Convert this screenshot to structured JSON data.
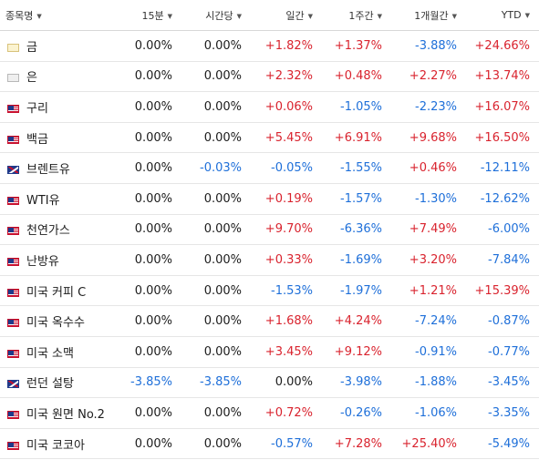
{
  "headers": [
    {
      "label": "종목명"
    },
    {
      "label": "15분"
    },
    {
      "label": "시간당"
    },
    {
      "label": "일간"
    },
    {
      "label": "1주간"
    },
    {
      "label": "1개월간"
    },
    {
      "label": "YTD"
    }
  ],
  "rows": [
    {
      "name": "금",
      "flag": "gold-icon",
      "values": [
        "0.00%",
        "0.00%",
        "+1.82%",
        "+1.37%",
        "-3.88%",
        "+24.66%"
      ]
    },
    {
      "name": "은",
      "flag": "silver-icon",
      "values": [
        "0.00%",
        "0.00%",
        "+2.32%",
        "+0.48%",
        "+2.27%",
        "+13.74%"
      ]
    },
    {
      "name": "구리",
      "flag": "us-flag-icon",
      "values": [
        "0.00%",
        "0.00%",
        "+0.06%",
        "-1.05%",
        "-2.23%",
        "+16.07%"
      ]
    },
    {
      "name": "백금",
      "flag": "us-flag-icon",
      "values": [
        "0.00%",
        "0.00%",
        "+5.45%",
        "+6.91%",
        "+9.68%",
        "+16.50%"
      ]
    },
    {
      "name": "브렌트유",
      "flag": "uk-flag-icon",
      "values": [
        "0.00%",
        "-0.03%",
        "-0.05%",
        "-1.55%",
        "+0.46%",
        "-12.11%"
      ]
    },
    {
      "name": "WTI유",
      "flag": "us-flag-icon",
      "values": [
        "0.00%",
        "0.00%",
        "+0.19%",
        "-1.57%",
        "-1.30%",
        "-12.62%"
      ]
    },
    {
      "name": "천연가스",
      "flag": "us-flag-icon",
      "values": [
        "0.00%",
        "0.00%",
        "+9.70%",
        "-6.36%",
        "+7.49%",
        "-6.00%"
      ]
    },
    {
      "name": "난방유",
      "flag": "us-flag-icon",
      "values": [
        "0.00%",
        "0.00%",
        "+0.33%",
        "-1.69%",
        "+3.20%",
        "-7.84%"
      ]
    },
    {
      "name": "미국 커피 C",
      "flag": "us-flag-icon",
      "values": [
        "0.00%",
        "0.00%",
        "-1.53%",
        "-1.97%",
        "+1.21%",
        "+15.39%"
      ]
    },
    {
      "name": "미국 옥수수",
      "flag": "us-flag-icon",
      "values": [
        "0.00%",
        "0.00%",
        "+1.68%",
        "+4.24%",
        "-7.24%",
        "-0.87%"
      ]
    },
    {
      "name": "미국 소맥",
      "flag": "us-flag-icon",
      "values": [
        "0.00%",
        "0.00%",
        "+3.45%",
        "+9.12%",
        "-0.91%",
        "-0.77%"
      ]
    },
    {
      "name": "런던 설탕",
      "flag": "uk-flag-icon",
      "values": [
        "-3.85%",
        "-3.85%",
        "0.00%",
        "-3.98%",
        "-1.88%",
        "-3.45%"
      ]
    },
    {
      "name": "미국 원면 No.2",
      "flag": "us-flag-icon",
      "values": [
        "0.00%",
        "0.00%",
        "+0.72%",
        "-0.26%",
        "-1.06%",
        "-3.35%"
      ]
    },
    {
      "name": "미국 코코아",
      "flag": "us-flag-icon",
      "values": [
        "0.00%",
        "0.00%",
        "-0.57%",
        "+7.28%",
        "+25.40%",
        "-5.49%"
      ]
    }
  ],
  "colors": {
    "positive": "#d9232e",
    "negative": "#1e6fd9",
    "neutral": "#1c1c1c"
  }
}
